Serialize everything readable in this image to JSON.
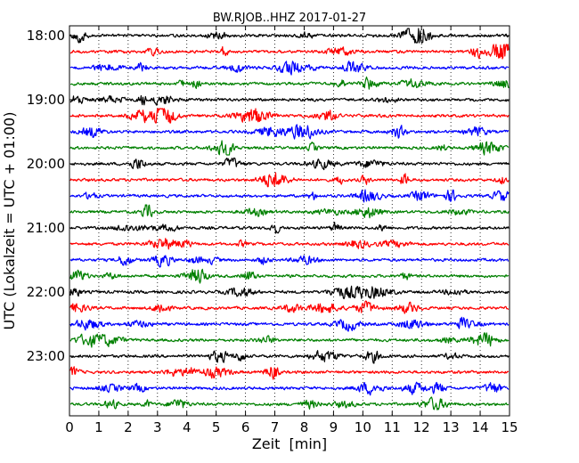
{
  "chart_data": {
    "type": "line",
    "title": "BW.RJOB..HHZ 2017-01-27",
    "xlabel": "Zeit  [min]",
    "ylabel": "UTC (Lokalzeit = UTC + 01:00)",
    "xlim": [
      0,
      15
    ],
    "x_ticks": [
      "0",
      "1",
      "2",
      "3",
      "4",
      "5",
      "6",
      "7",
      "8",
      "9",
      "10",
      "11",
      "12",
      "13",
      "14",
      "15"
    ],
    "y_tick_labels": [
      "18:00",
      "19:00",
      "20:00",
      "21:00",
      "22:00",
      "23:00"
    ],
    "traces_per_hour": 4,
    "trace_count": 24,
    "trace_colors": [
      "#000000",
      "#ff0000",
      "#0000ff",
      "#008000"
    ],
    "grid": "vertical dotted lines at every minute",
    "series": [
      {
        "start": "18:00",
        "color": "#000000"
      },
      {
        "start": "18:15",
        "color": "#ff0000"
      },
      {
        "start": "18:30",
        "color": "#0000ff"
      },
      {
        "start": "18:45",
        "color": "#008000"
      },
      {
        "start": "19:00",
        "color": "#000000"
      },
      {
        "start": "19:15",
        "color": "#ff0000"
      },
      {
        "start": "19:30",
        "color": "#0000ff"
      },
      {
        "start": "19:45",
        "color": "#008000"
      },
      {
        "start": "20:00",
        "color": "#000000"
      },
      {
        "start": "20:15",
        "color": "#ff0000"
      },
      {
        "start": "20:30",
        "color": "#0000ff"
      },
      {
        "start": "20:45",
        "color": "#008000"
      },
      {
        "start": "21:00",
        "color": "#000000"
      },
      {
        "start": "21:15",
        "color": "#ff0000"
      },
      {
        "start": "21:30",
        "color": "#0000ff"
      },
      {
        "start": "21:45",
        "color": "#008000"
      },
      {
        "start": "22:00",
        "color": "#000000"
      },
      {
        "start": "22:15",
        "color": "#ff0000"
      },
      {
        "start": "22:30",
        "color": "#0000ff"
      },
      {
        "start": "22:45",
        "color": "#008000"
      },
      {
        "start": "23:00",
        "color": "#000000"
      },
      {
        "start": "23:15",
        "color": "#ff0000"
      },
      {
        "start": "23:30",
        "color": "#0000ff"
      },
      {
        "start": "23:45",
        "color": "#008000"
      }
    ]
  }
}
